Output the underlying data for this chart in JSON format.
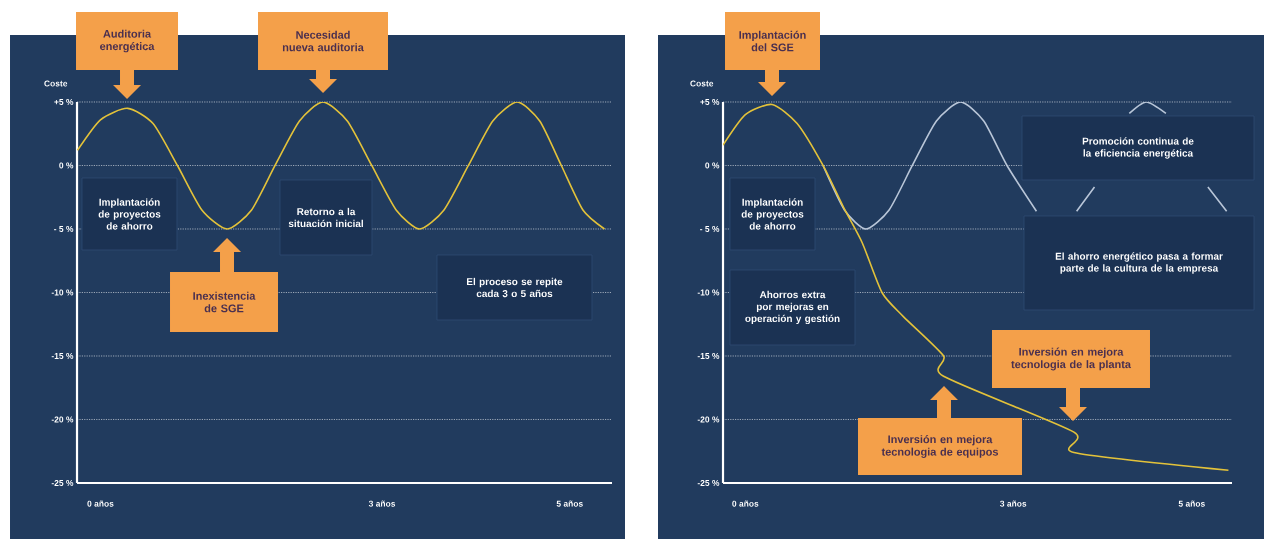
{
  "chart_data": [
    {
      "type": "line",
      "ylabel": "Coste",
      "grid": "y",
      "series": [
        {
          "color": "#e3c23a",
          "x": [
            -0.245,
            0.0,
            0.29,
            0.56,
            0.82,
            1.08,
            1.35,
            1.61,
            1.86,
            2.12,
            2.37,
            2.63,
            2.89,
            3.15,
            3.4,
            3.66,
            3.92,
            4.18,
            4.44,
            4.68,
            4.91,
            5.14,
            5.37
          ],
          "values": [
            1.2,
            3.6,
            4.5,
            3.3,
            0,
            -3.5,
            -5,
            -3.5,
            0,
            3.5,
            5,
            3.5,
            0,
            -3.5,
            -5,
            -3.5,
            0,
            3.5,
            5,
            3.5,
            0,
            -3.5,
            -5
          ]
        }
      ],
      "xlim": [
        -0.25,
        5.45
      ],
      "xticks": [
        {
          "value": 0,
          "label": "0 años"
        },
        {
          "value": 3,
          "label": "3 años"
        },
        {
          "value": 5,
          "label": "5 años"
        }
      ],
      "ylim": [
        -25,
        5
      ],
      "yticks": [
        {
          "value": 5,
          "label": "+5 %"
        },
        {
          "value": 0,
          "label": "0 %"
        },
        {
          "value": -5,
          "label": "- 5 %"
        },
        {
          "value": -10,
          "label": "-10 %"
        },
        {
          "value": -15,
          "label": "-15 %"
        },
        {
          "value": -20,
          "label": "-20 %"
        },
        {
          "value": -25,
          "label": "-25 %"
        }
      ],
      "annotations": [
        "Auditoria energética",
        "Necesidad nueva auditoria",
        "Implantación de proyectos de ahorro",
        "Retorno a la situación inicial",
        "Inexistencia de SGE",
        "El proceso se repite cada 3 o 5 años"
      ]
    },
    {
      "type": "line",
      "ylabel": "Coste",
      "grid": "y",
      "series": [
        {
          "color": "#b9c6d8",
          "x": [
            0.87,
            1.11,
            1.35,
            1.61,
            1.87,
            2.14,
            2.41,
            2.67,
            2.93,
            3.26,
            3.5,
            3.71,
            3.91,
            4.1,
            4.3,
            4.49,
            4.71,
            5.0,
            5.18,
            5.39
          ],
          "values": [
            0,
            -3.5,
            -5,
            -3.5,
            0,
            3.5,
            5,
            3.5,
            0,
            -3.6,
            null,
            -3.6,
            -1.7,
            null,
            4.1,
            5,
            4.1,
            null,
            -1.7,
            -3.6
          ]
        },
        {
          "color": "#e3c23a",
          "x": [
            -0.25,
            0.0,
            0.3,
            0.58,
            0.87,
            1.1,
            1.31,
            1.53,
            1.77,
            2.22,
            2.22,
            3.68,
            3.68,
            5.41
          ],
          "values": [
            1.6,
            4.0,
            4.8,
            3.3,
            0,
            -3.3,
            -6.1,
            -10,
            -11.9,
            -15,
            -16.6,
            -21,
            -22.6,
            -24
          ]
        }
      ],
      "xlim": [
        -0.25,
        5.45
      ],
      "xticks": [
        {
          "value": 0,
          "label": "0 años"
        },
        {
          "value": 3,
          "label": "3 años"
        },
        {
          "value": 5,
          "label": "5 años"
        }
      ],
      "ylim": [
        -25,
        5
      ],
      "yticks": [
        {
          "value": 5,
          "label": "+5 %"
        },
        {
          "value": 0,
          "label": "0 %"
        },
        {
          "value": -5,
          "label": "- 5 %"
        },
        {
          "value": -10,
          "label": "-10 %"
        },
        {
          "value": -15,
          "label": "-15 %"
        },
        {
          "value": -20,
          "label": "-20 %"
        },
        {
          "value": -25,
          "label": "-25 %"
        }
      ],
      "annotations": [
        "Implantación del SGE",
        "Implantación de proyectos de ahorro",
        "Ahorros extra por mejoras en operación y gestión",
        "Promoción continua de la eficiencia energética",
        "El ahorro energético pasa a formar parte de la cultura de la empresa",
        "Inversión en mejora tecnologia de equipos",
        "Inversión en mejora tecnologia de la planta"
      ]
    }
  ]
}
